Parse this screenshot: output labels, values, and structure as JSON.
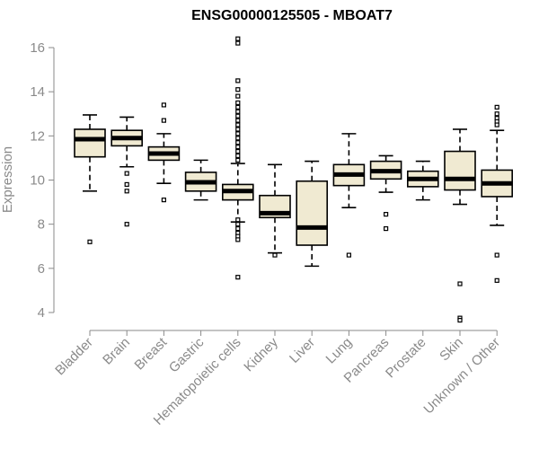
{
  "chart_data": {
    "type": "box",
    "title": "ENSG00000125505 - MBOAT7",
    "xlabel": "",
    "ylabel": "Expression",
    "ylim": [
      3.5,
      16.5
    ],
    "yticks": [
      4,
      6,
      8,
      10,
      12,
      14,
      16
    ],
    "box_fill": "#f0ead2",
    "box_stroke": "#000000",
    "categories": [
      "Bladder",
      "Brain",
      "Breast",
      "Gastric",
      "Hematopoietic cells",
      "Kidney",
      "Liver",
      "Lung",
      "Pancreas",
      "Prostate",
      "Skin",
      "Unknown / Other"
    ],
    "boxes": [
      {
        "category": "Bladder",
        "whisker_low": 9.5,
        "q1": 11.05,
        "median": 11.85,
        "q3": 12.3,
        "whisker_high": 12.95,
        "outliers": [
          7.2
        ]
      },
      {
        "category": "Brain",
        "whisker_low": 10.6,
        "q1": 11.55,
        "median": 11.9,
        "q3": 12.25,
        "whisker_high": 12.85,
        "outliers": [
          10.3,
          9.8,
          9.5,
          8.0
        ]
      },
      {
        "category": "Breast",
        "whisker_low": 9.85,
        "q1": 10.9,
        "median": 11.2,
        "q3": 11.5,
        "whisker_high": 12.1,
        "outliers": [
          13.4,
          12.7,
          9.1
        ]
      },
      {
        "category": "Gastric",
        "whisker_low": 9.1,
        "q1": 9.5,
        "median": 9.9,
        "q3": 10.35,
        "whisker_high": 10.9,
        "outliers": []
      },
      {
        "category": "Hematopoietic cells",
        "whisker_low": 8.1,
        "q1": 9.1,
        "median": 9.5,
        "q3": 9.8,
        "whisker_high": 10.75,
        "outliers": [
          16.4,
          16.2,
          14.5,
          14.1,
          13.8,
          13.5,
          13.3,
          13.1,
          12.9,
          12.7,
          12.5,
          12.3,
          12.1,
          11.9,
          11.7,
          11.5,
          11.3,
          11.1,
          10.9,
          8.2,
          8.0,
          7.8,
          7.6,
          7.45,
          7.3,
          5.6
        ]
      },
      {
        "category": "Kidney",
        "whisker_low": 6.7,
        "q1": 8.3,
        "median": 8.5,
        "q3": 9.3,
        "whisker_high": 10.7,
        "outliers": [
          6.6
        ]
      },
      {
        "category": "Liver",
        "whisker_low": 6.1,
        "q1": 7.05,
        "median": 7.85,
        "q3": 9.95,
        "whisker_high": 10.85,
        "outliers": []
      },
      {
        "category": "Lung",
        "whisker_low": 8.75,
        "q1": 9.75,
        "median": 10.25,
        "q3": 10.7,
        "whisker_high": 12.1,
        "outliers": [
          6.6
        ]
      },
      {
        "category": "Pancreas",
        "whisker_low": 9.45,
        "q1": 10.05,
        "median": 10.4,
        "q3": 10.85,
        "whisker_high": 11.1,
        "outliers": [
          8.45,
          7.8
        ]
      },
      {
        "category": "Prostate",
        "whisker_low": 9.1,
        "q1": 9.7,
        "median": 10.05,
        "q3": 10.4,
        "whisker_high": 10.85,
        "outliers": []
      },
      {
        "category": "Skin",
        "whisker_low": 8.9,
        "q1": 9.55,
        "median": 10.05,
        "q3": 11.3,
        "whisker_high": 12.3,
        "outliers": [
          5.3,
          3.75,
          3.65
        ]
      },
      {
        "category": "Unknown / Other",
        "whisker_low": 7.95,
        "q1": 9.25,
        "median": 9.85,
        "q3": 10.45,
        "whisker_high": 12.25,
        "outliers": [
          13.3,
          13.0,
          12.8,
          12.65,
          12.5,
          6.6,
          5.45
        ]
      }
    ]
  }
}
